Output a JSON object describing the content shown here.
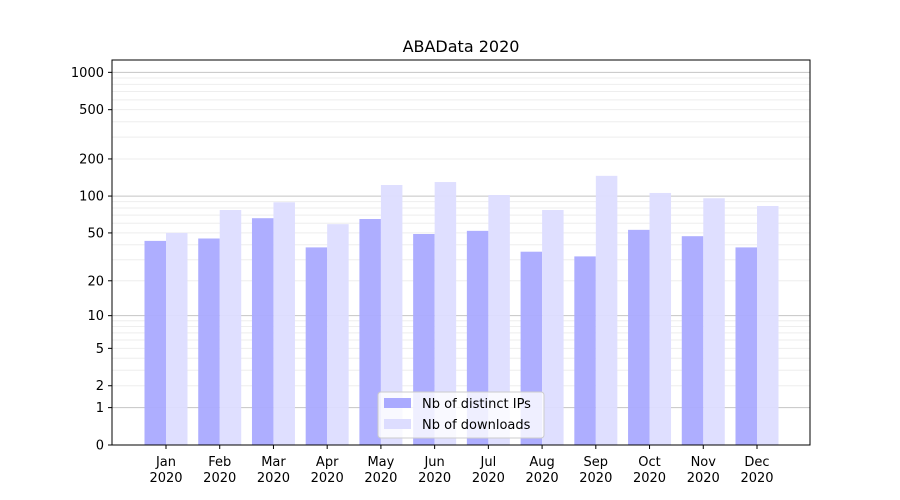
{
  "chart_data": {
    "type": "bar",
    "title": "ABAData 2020",
    "xlabel": "",
    "ylabel": "",
    "yscale": "symlog",
    "ylim": [
      0,
      1300
    ],
    "yticks": [
      0,
      1,
      2,
      5,
      10,
      20,
      50,
      100,
      200,
      500,
      1000
    ],
    "categories": [
      "Jan\n2020",
      "Feb\n2020",
      "Mar\n2020",
      "Apr\n2020",
      "May\n2020",
      "Jun\n2020",
      "Jul\n2020",
      "Aug\n2020",
      "Sep\n2020",
      "Oct\n2020",
      "Nov\n2020",
      "Dec\n2020"
    ],
    "series": [
      {
        "name": "Nb of distinct IPs",
        "color": "#aaaaff",
        "values": [
          43,
          45,
          66,
          38,
          65,
          49,
          52,
          35,
          32,
          53,
          47,
          38
        ]
      },
      {
        "name": "Nb of downloads",
        "color": "#ddddff",
        "values": [
          50,
          77,
          89,
          59,
          123,
          130,
          102,
          77,
          146,
          106,
          96,
          83
        ]
      }
    ],
    "legend_position": "lower-center",
    "grid": true
  }
}
